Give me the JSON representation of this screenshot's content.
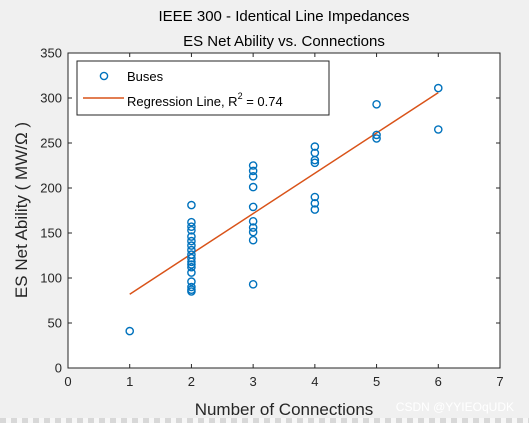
{
  "chart_data": {
    "type": "scatter",
    "title_lines": [
      "IEEE 300 - Identical Line Impedances",
      "ES Net Ability vs. Connections"
    ],
    "xlabel": "Number of Connections",
    "ylabel": "ES Net Ability ( MW/Ω )",
    "xlim": [
      0,
      7
    ],
    "ylim": [
      0,
      350
    ],
    "xticks": [
      0,
      1,
      2,
      3,
      4,
      5,
      6,
      7
    ],
    "yticks": [
      0,
      50,
      100,
      150,
      200,
      250,
      300,
      350
    ],
    "grid": false,
    "legend_position": "top-left",
    "series": [
      {
        "name": "Buses",
        "kind": "scatter",
        "color": "#0072BD",
        "points": [
          [
            1,
            41
          ],
          [
            2,
            181
          ],
          [
            2,
            162
          ],
          [
            2,
            157
          ],
          [
            2,
            153
          ],
          [
            2,
            146
          ],
          [
            2,
            141
          ],
          [
            2,
            136
          ],
          [
            2,
            131
          ],
          [
            2,
            126
          ],
          [
            2,
            122
          ],
          [
            2,
            118
          ],
          [
            2,
            115
          ],
          [
            2,
            112
          ],
          [
            2,
            106
          ],
          [
            2,
            96
          ],
          [
            2,
            90
          ],
          [
            2,
            87
          ],
          [
            2,
            85
          ],
          [
            3,
            225
          ],
          [
            3,
            219
          ],
          [
            3,
            213
          ],
          [
            3,
            201
          ],
          [
            3,
            179
          ],
          [
            3,
            163
          ],
          [
            3,
            156
          ],
          [
            3,
            151
          ],
          [
            3,
            142
          ],
          [
            3,
            93
          ],
          [
            4,
            246
          ],
          [
            4,
            239
          ],
          [
            4,
            231
          ],
          [
            4,
            228
          ],
          [
            4,
            190
          ],
          [
            4,
            183
          ],
          [
            4,
            176
          ],
          [
            5,
            293
          ],
          [
            5,
            259
          ],
          [
            5,
            255
          ],
          [
            6,
            311
          ],
          [
            6,
            265
          ]
        ]
      },
      {
        "name": "Regression Line",
        "kind": "line",
        "color": "#D95319",
        "points": [
          [
            1,
            82
          ],
          [
            6,
            306
          ]
        ]
      }
    ],
    "legend_regression_prefix": "Regression Line, R",
    "legend_regression_superscript": "2",
    "legend_regression_suffix": " =  0.74"
  },
  "watermark": "CSDN @YYIEOqUDK"
}
